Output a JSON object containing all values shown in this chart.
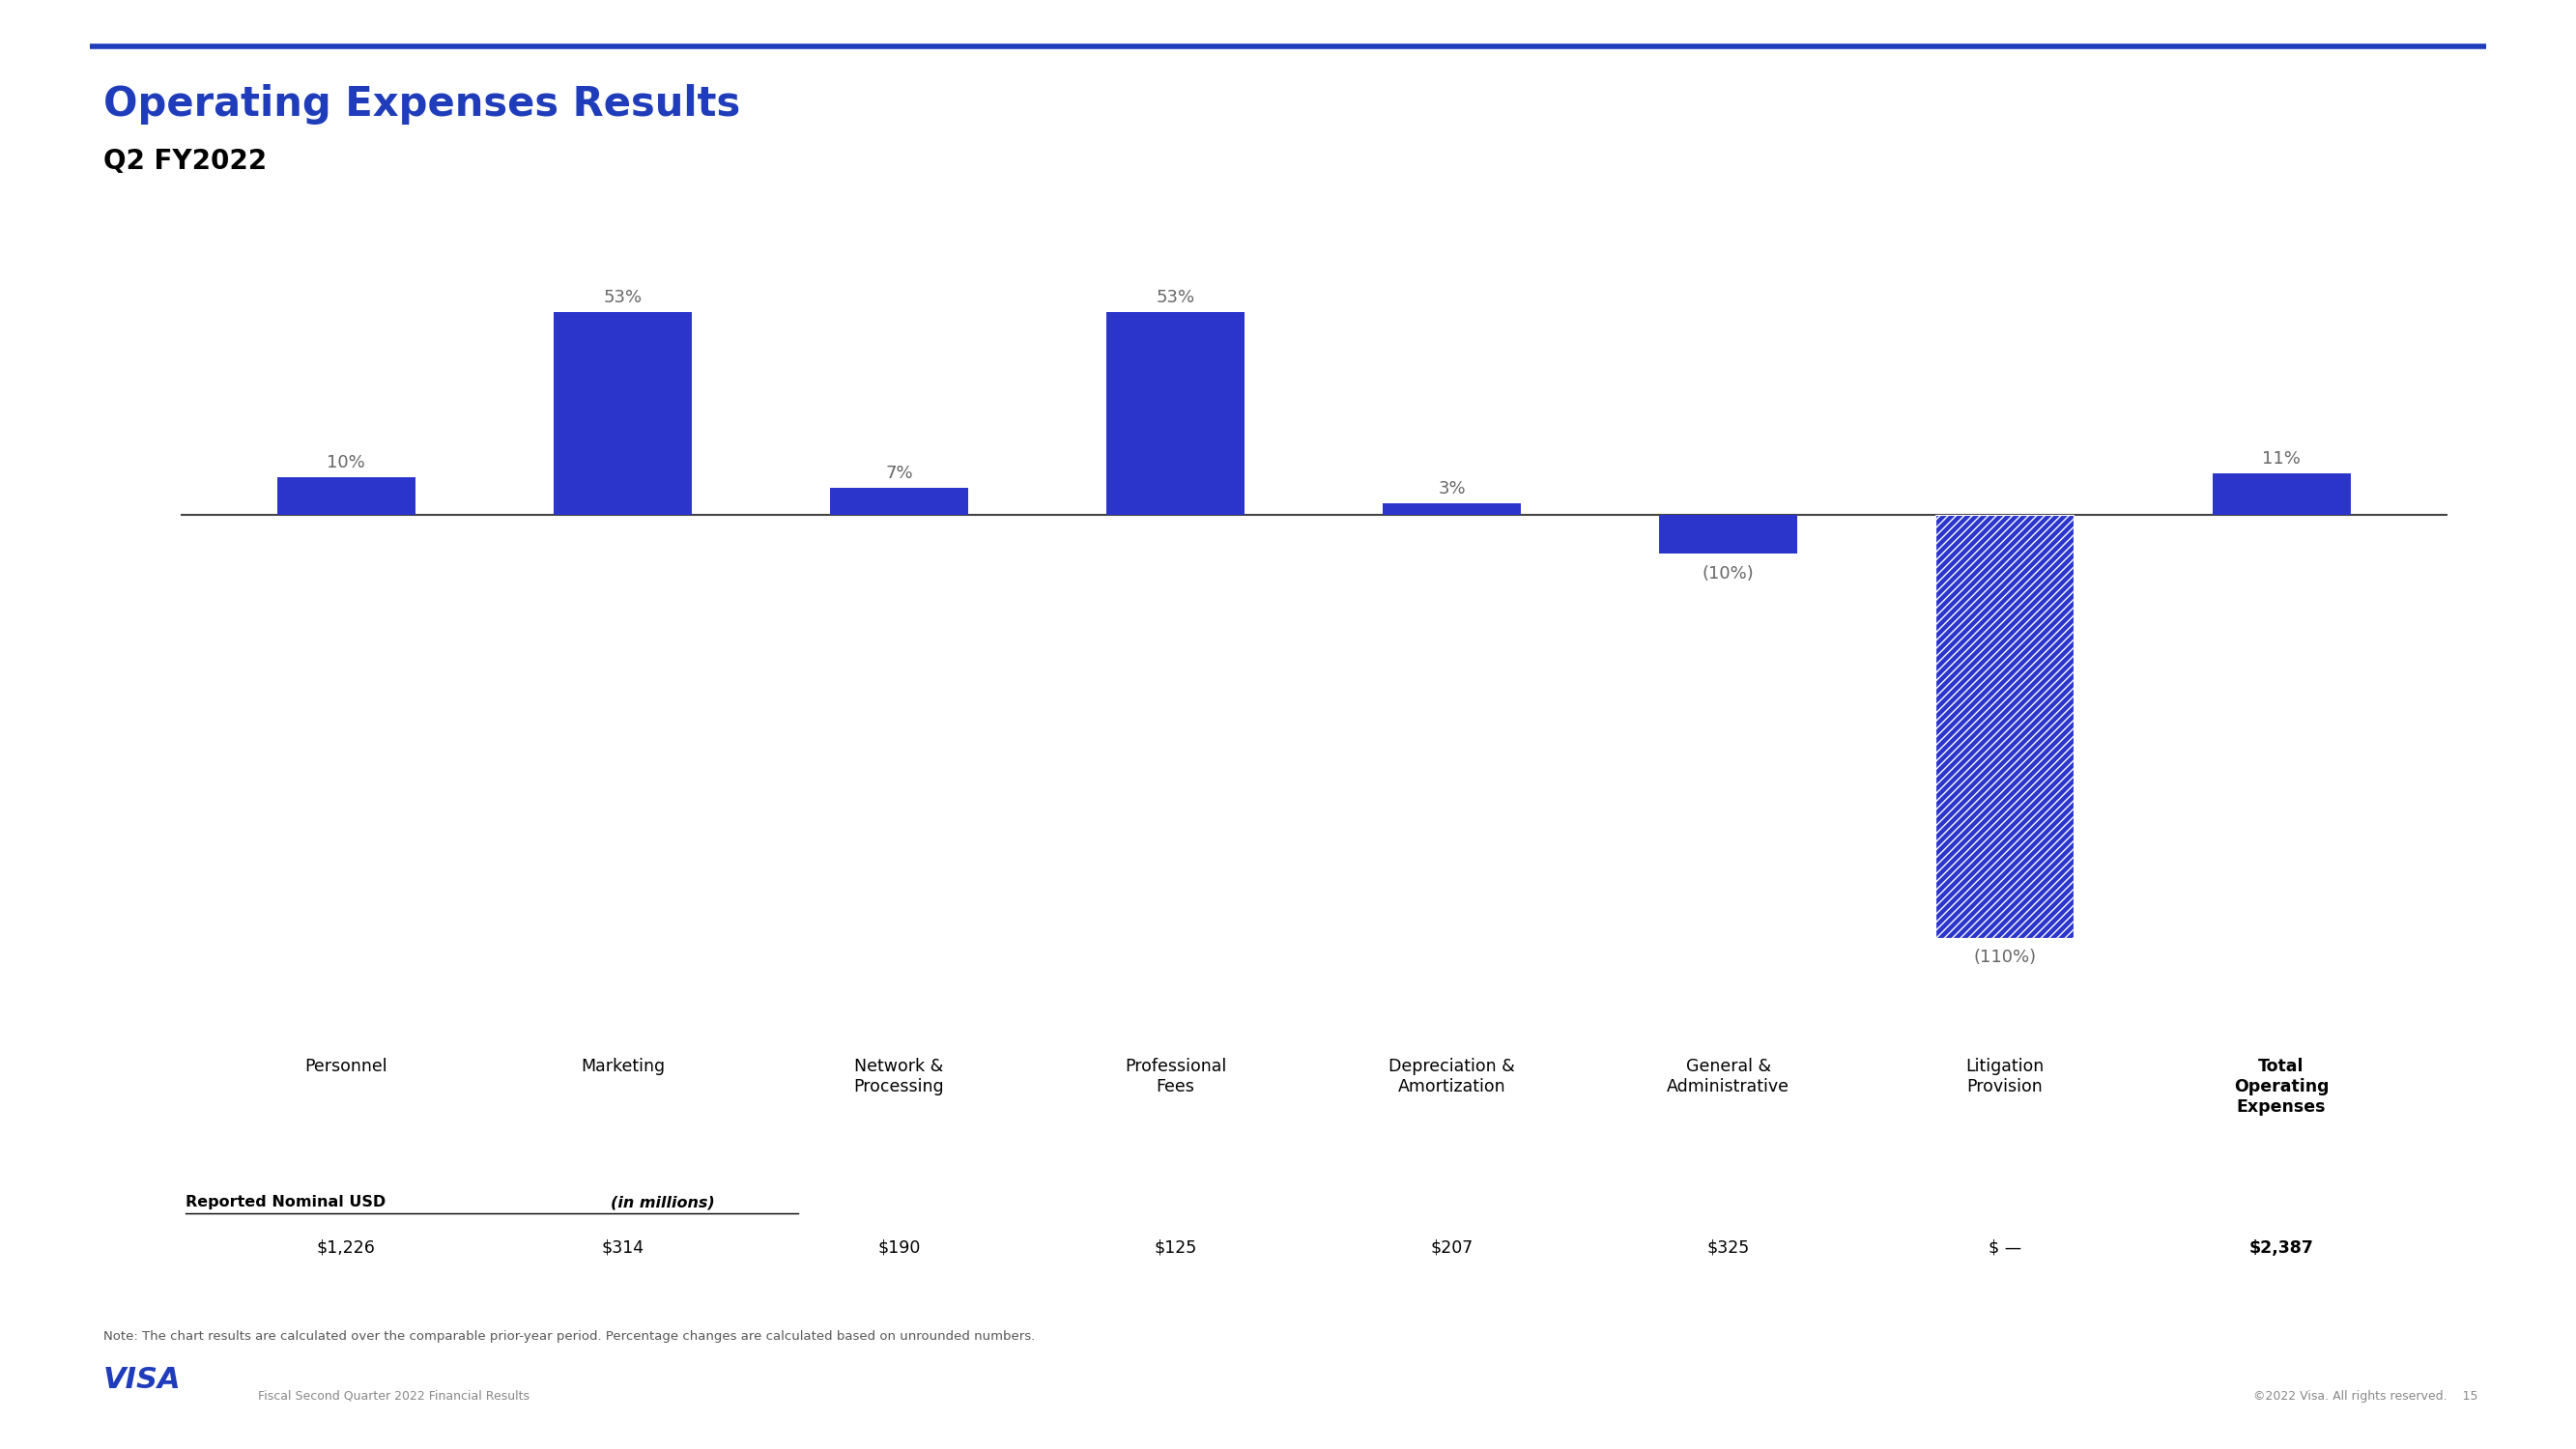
{
  "title": "Operating Expenses Results",
  "subtitle": "Q2 FY2022",
  "title_color": "#1F3CBA",
  "subtitle_color": "#000000",
  "bar_color": "#2B35CC",
  "categories": [
    "Personnel",
    "Marketing",
    "Network &\nProcessing",
    "Professional\nFees",
    "Depreciation &\nAmortization",
    "General &\nAdministrative",
    "Litigation\nProvision",
    "Total\nOperating\nExpenses"
  ],
  "values": [
    10,
    53,
    7,
    53,
    3,
    -10,
    -110,
    11
  ],
  "pct_labels": [
    "10%",
    "53%",
    "7%",
    "53%",
    "3%",
    "(10%)",
    "(110%)",
    "11%"
  ],
  "dollar_values": [
    "$1,226",
    "$314",
    "$190",
    "$125",
    "$207",
    "$325",
    "$ —",
    "$2,387"
  ],
  "reported_label": "Reported Nominal USD",
  "reported_italic": "(in millions)",
  "note": "Note: The chart results are calculated over the comparable prior-year period. Percentage changes are calculated based on unrounded numbers.",
  "footer_left": "Fiscal Second Quarter 2022 Financial Results",
  "footer_right": "©2022 Visa. All rights reserved.    15",
  "hatch_index": 6,
  "total_index": 7,
  "background_color": "#FFFFFF",
  "axis_line_color": "#444444",
  "label_color": "#666666",
  "top_line_color": "#1F3CBA",
  "ylim_min": -130,
  "ylim_max": 70
}
